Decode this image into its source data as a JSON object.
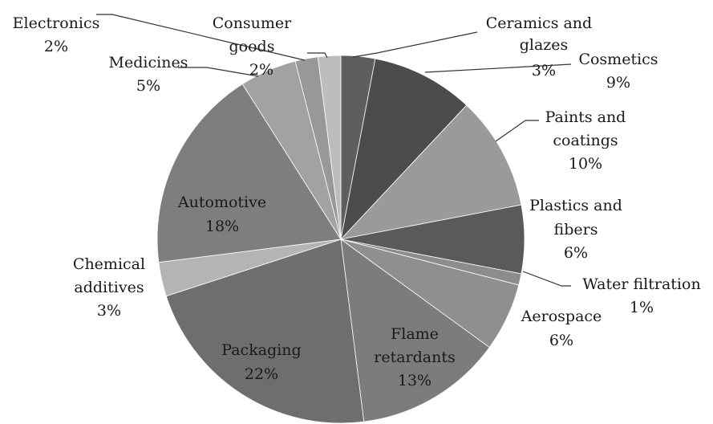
{
  "chart_data": {
    "type": "pie",
    "start_angle_deg": 0,
    "direction": "clockwise",
    "slices": [
      {
        "name": "Ceramics and glazes",
        "label_lines": [
          "Ceramics and",
          "glazes",
          "3%"
        ],
        "value": 3,
        "color": "#5e5e5e"
      },
      {
        "name": "Cosmetics",
        "label_lines": [
          "Cosmetics",
          "9%"
        ],
        "value": 9,
        "color": "#4c4c4c"
      },
      {
        "name": "Paints and coatings",
        "label_lines": [
          "Paints and",
          "coatings",
          "10%"
        ],
        "value": 10,
        "color": "#9a9a9a"
      },
      {
        "name": "Plastics and fibers",
        "label_lines": [
          "Plastics and",
          "fibers",
          "6%"
        ],
        "value": 6,
        "color": "#5a5a5a"
      },
      {
        "name": "Water filtration",
        "label_lines": [
          "Water filtration",
          "1%"
        ],
        "value": 1,
        "color": "#8c8c8c"
      },
      {
        "name": "Aerospace",
        "label_lines": [
          "Aerospace",
          "6%"
        ],
        "value": 6,
        "color": "#8f8f8f"
      },
      {
        "name": "Flame retardants",
        "label_lines": [
          "Flame",
          "retardants",
          "13%"
        ],
        "value": 13,
        "color": "#7c7c7c"
      },
      {
        "name": "Packaging",
        "label_lines": [
          "Packaging",
          "22%"
        ],
        "value": 22,
        "color": "#6e6e6e"
      },
      {
        "name": "Chemical additives",
        "label_lines": [
          "Chemical",
          "additives",
          "3%"
        ],
        "value": 3,
        "color": "#b4b4b4"
      },
      {
        "name": "Automotive",
        "label_lines": [
          "Automotive",
          "18%"
        ],
        "value": 18,
        "color": "#7e7e7e"
      },
      {
        "name": "Medicines",
        "label_lines": [
          "Medicines",
          "5%"
        ],
        "value": 5,
        "color": "#a2a2a2"
      },
      {
        "name": "Consumer goods",
        "label_lines": [
          "Consumer",
          "goods",
          "2%"
        ],
        "value": 2,
        "color": "#989898"
      },
      {
        "name": "Electronics",
        "label_lines": [
          "Electronics",
          "2%"
        ],
        "value": 2,
        "color": "#bdbdbd"
      }
    ]
  }
}
